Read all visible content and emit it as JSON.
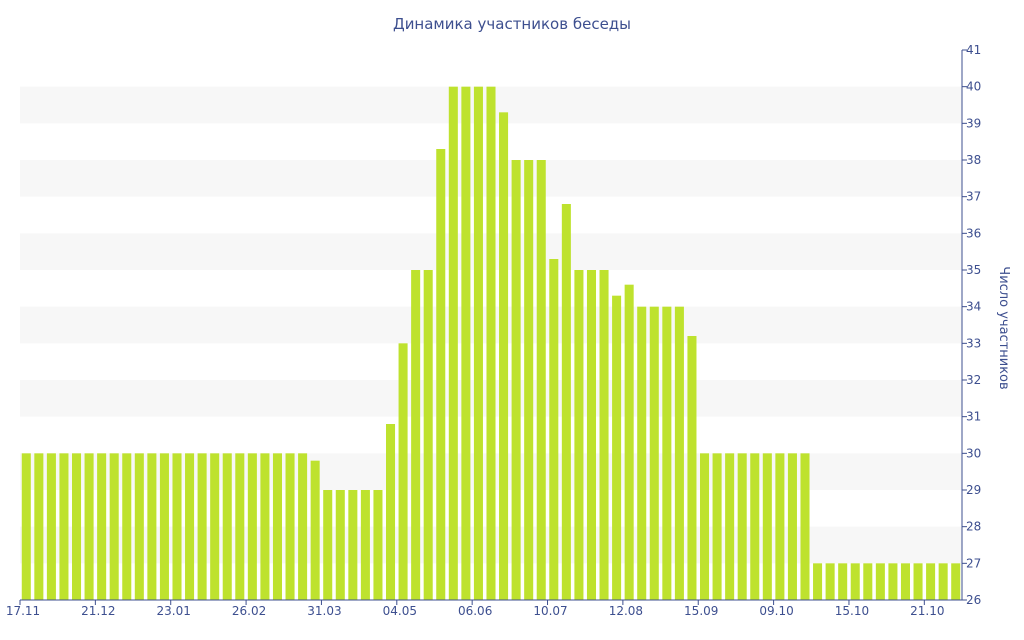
{
  "chart_data": {
    "type": "bar",
    "title": "Динамика участников беседы",
    "xlabel": "",
    "ylabel": "Число участников",
    "ylim": [
      26,
      41
    ],
    "y_ticks": [
      26,
      27,
      28,
      29,
      30,
      31,
      32,
      33,
      34,
      35,
      36,
      37,
      38,
      39,
      40,
      41
    ],
    "y_axis_side": "right",
    "grid": "alternating horizontal bands",
    "x_tick_labels": [
      {
        "bar_index": 0,
        "label": "17.11"
      },
      {
        "bar_index": 6,
        "label": "21.12"
      },
      {
        "bar_index": 12,
        "label": "23.01"
      },
      {
        "bar_index": 18,
        "label": "26.02"
      },
      {
        "bar_index": 24,
        "label": "31.03"
      },
      {
        "bar_index": 30,
        "label": "04.05"
      },
      {
        "bar_index": 36,
        "label": "06.06"
      },
      {
        "bar_index": 42,
        "label": "10.07"
      },
      {
        "bar_index": 48,
        "label": "12.08"
      },
      {
        "bar_index": 54,
        "label": "15.09"
      },
      {
        "bar_index": 60,
        "label": "09.10"
      },
      {
        "bar_index": 66,
        "label": "15.10"
      },
      {
        "bar_index": 72,
        "label": "21.10"
      }
    ],
    "values": [
      30,
      30,
      30,
      30,
      30,
      30,
      30,
      30,
      30,
      30,
      30,
      30,
      30,
      30,
      30,
      30,
      30,
      30,
      30,
      30,
      30,
      30,
      30,
      29.8,
      29,
      29,
      29,
      29,
      29,
      30.8,
      33,
      35,
      35,
      38.3,
      40,
      40,
      40,
      40,
      39.3,
      38,
      38,
      38,
      35.3,
      36.8,
      35,
      35,
      35,
      34.3,
      34.6,
      34,
      34,
      34,
      34,
      33.2,
      30,
      30,
      30,
      30,
      30,
      30,
      30,
      30,
      30,
      27,
      27,
      27,
      27,
      27,
      27,
      27,
      27,
      27,
      27,
      27,
      27
    ],
    "colors": {
      "bar": "#bee22e",
      "band": "#f7f7f7",
      "text": "#3d4f8f",
      "axis": "#3d4f8f"
    }
  }
}
